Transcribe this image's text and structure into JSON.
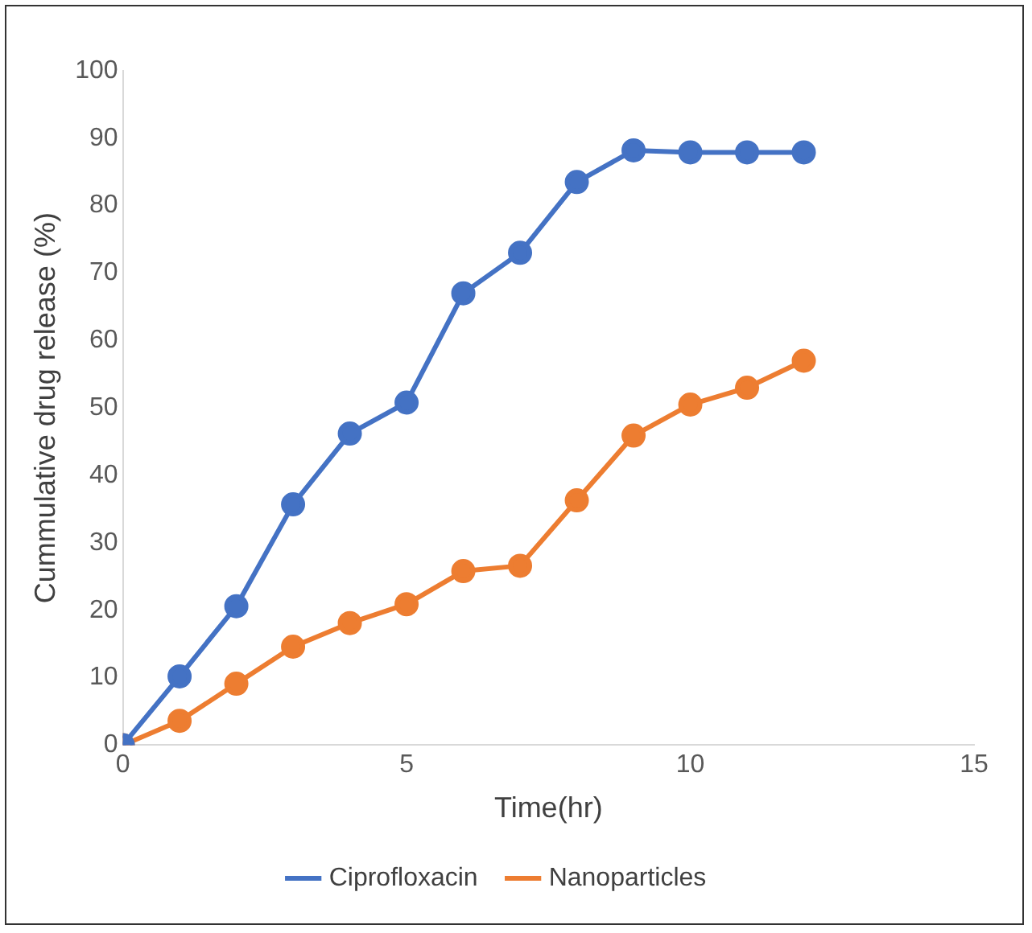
{
  "chart_data": {
    "type": "line",
    "xlabel": "Time(hr)",
    "ylabel": "Cummulative drug release (%)",
    "xlim": [
      0,
      15
    ],
    "xticks": [
      0,
      5,
      10,
      15
    ],
    "ylim": [
      0,
      100
    ],
    "yticks": [
      0,
      10,
      20,
      30,
      40,
      50,
      60,
      70,
      80,
      90,
      100
    ],
    "x": [
      0,
      1,
      2,
      3,
      4,
      5,
      6,
      7,
      8,
      9,
      10,
      11,
      12
    ],
    "series": [
      {
        "name": "Ciprofloxacin",
        "color": "#4472c4",
        "values": [
          0,
          10.2,
          20.6,
          35.7,
          46.2,
          50.8,
          67,
          73,
          83.5,
          88.2,
          87.9,
          87.9,
          87.9
        ]
      },
      {
        "name": "Nanoparticles",
        "color": "#ed7d31",
        "values": [
          0,
          3.6,
          9.1,
          14.6,
          18.1,
          20.9,
          25.8,
          26.6,
          36.3,
          45.9,
          50.5,
          53,
          57
        ]
      }
    ],
    "marker": "circle",
    "legend": "bottom",
    "grid": false
  }
}
